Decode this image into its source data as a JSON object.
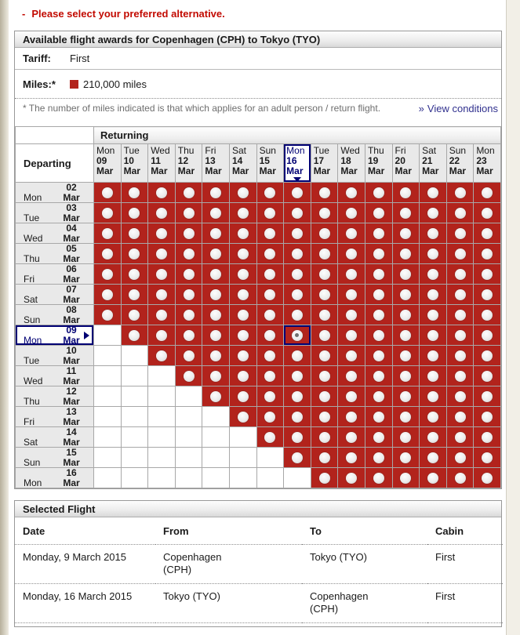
{
  "page": {
    "alert_dash": "-",
    "alert_text": "Please select your preferred alternative."
  },
  "award_panel": {
    "title": "Available flight awards for Copenhagen (CPH) to Tokyo (TYO)",
    "tariff_label": "Tariff:",
    "tariff_value": "First",
    "miles_label": "Miles:*",
    "miles_value": "210,000 miles",
    "note": "* The number of miles indicated is that which applies for an adult person / return flight.",
    "conditions_arrow": "»",
    "conditions_label": "View conditions"
  },
  "matrix": {
    "returning_label": "Returning",
    "departing_label": "Departing",
    "columns": [
      {
        "day": "Mon",
        "date": "09",
        "month": "Mar"
      },
      {
        "day": "Tue",
        "date": "10",
        "month": "Mar"
      },
      {
        "day": "Wed",
        "date": "11",
        "month": "Mar"
      },
      {
        "day": "Thu",
        "date": "12",
        "month": "Mar"
      },
      {
        "day": "Fri",
        "date": "13",
        "month": "Mar"
      },
      {
        "day": "Sat",
        "date": "14",
        "month": "Mar"
      },
      {
        "day": "Sun",
        "date": "15",
        "month": "Mar"
      },
      {
        "day": "Mon",
        "date": "16",
        "month": "Mar"
      },
      {
        "day": "Tue",
        "date": "17",
        "month": "Mar"
      },
      {
        "day": "Wed",
        "date": "18",
        "month": "Mar"
      },
      {
        "day": "Thu",
        "date": "19",
        "month": "Mar"
      },
      {
        "day": "Fri",
        "date": "20",
        "month": "Mar"
      },
      {
        "day": "Sat",
        "date": "21",
        "month": "Mar"
      },
      {
        "day": "Sun",
        "date": "22",
        "month": "Mar"
      },
      {
        "day": "Mon",
        "date": "23",
        "month": "Mar"
      }
    ],
    "rows": [
      {
        "day": "Mon",
        "date": "02",
        "month": "Mar",
        "radios_from_col": 0
      },
      {
        "day": "Tue",
        "date": "03",
        "month": "Mar",
        "radios_from_col": 0
      },
      {
        "day": "Wed",
        "date": "04",
        "month": "Mar",
        "radios_from_col": 0
      },
      {
        "day": "Thu",
        "date": "05",
        "month": "Mar",
        "radios_from_col": 0
      },
      {
        "day": "Fri",
        "date": "06",
        "month": "Mar",
        "radios_from_col": 0
      },
      {
        "day": "Sat",
        "date": "07",
        "month": "Mar",
        "radios_from_col": 0
      },
      {
        "day": "Sun",
        "date": "08",
        "month": "Mar",
        "radios_from_col": 0
      },
      {
        "day": "Mon",
        "date": "09",
        "month": "Mar",
        "radios_from_col": 1
      },
      {
        "day": "Tue",
        "date": "10",
        "month": "Mar",
        "radios_from_col": 2
      },
      {
        "day": "Wed",
        "date": "11",
        "month": "Mar",
        "radios_from_col": 3
      },
      {
        "day": "Thu",
        "date": "12",
        "month": "Mar",
        "radios_from_col": 4
      },
      {
        "day": "Fri",
        "date": "13",
        "month": "Mar",
        "radios_from_col": 5
      },
      {
        "day": "Sat",
        "date": "14",
        "month": "Mar",
        "radios_from_col": 6
      },
      {
        "day": "Sun",
        "date": "15",
        "month": "Mar",
        "radios_from_col": 7
      },
      {
        "day": "Mon",
        "date": "16",
        "month": "Mar",
        "radios_from_col": 8
      }
    ],
    "selected_col_index": 7,
    "selected_row_index": 7,
    "selected_cell": {
      "row_index": 7,
      "col_index": 7
    }
  },
  "selected_flight": {
    "title": "Selected Flight",
    "headers": [
      "Date",
      "From",
      "To",
      "Cabin"
    ],
    "rows": [
      {
        "date": "Monday, 9 March 2015",
        "from": "Copenhagen\n(CPH)",
        "to": "Tokyo (TYO)",
        "cabin": "First"
      },
      {
        "date": "Monday, 16 March 2015",
        "from": "Tokyo (TYO)",
        "to": "Copenhagen\n(CPH)",
        "cabin": "First"
      }
    ]
  },
  "colors": {
    "accent_red": "#b2231c",
    "alert_red": "#c20a00",
    "selection_navy": "#000073",
    "link_navy": "#30308e"
  }
}
